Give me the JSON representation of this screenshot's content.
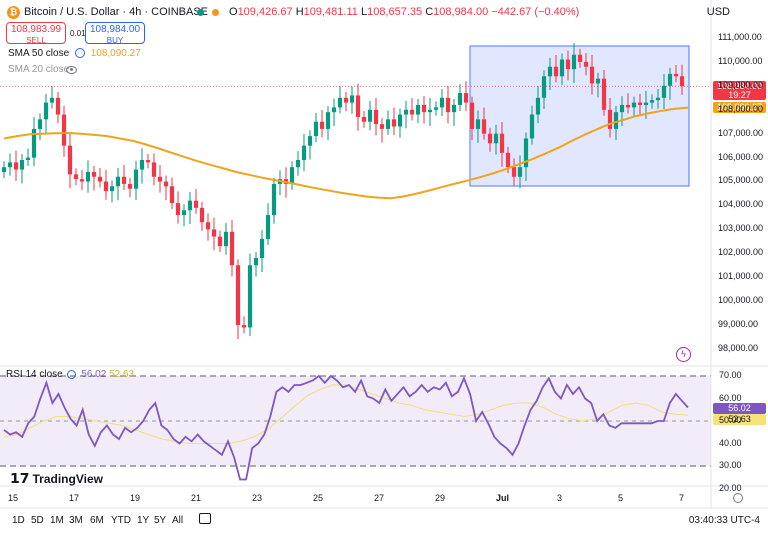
{
  "header": {
    "symbol_title": "Bitcoin / U.S. Dollar · 4h · COINBASE",
    "ohlc": {
      "o_label": "O",
      "o": "109,426.67",
      "h_label": "H",
      "h": "109,481.11",
      "l_label": "L",
      "l": "108,657.35",
      "c_label": "C",
      "c": "108,984.00",
      "change": "−442.67 (−0.40%)"
    },
    "currency": "USD",
    "sell": {
      "price": "108,983.99",
      "label": "SELL"
    },
    "buy": {
      "price": "108,984.00",
      "label": "BUY"
    },
    "spread": "0.01"
  },
  "indicators": {
    "sma50": {
      "label": "SMA 50 close",
      "value": "108,090.27",
      "color": "#f0a31b"
    },
    "sma20": {
      "label": "SMA 20 close"
    },
    "rsi": {
      "label": "RSI 14 close",
      "value": "56.02",
      "ma_value": "52.63",
      "color": "#7e57c2",
      "ma_color": "#f7e27a"
    }
  },
  "price_tags": {
    "last": "108,984.00",
    "countdown": "19:27",
    "sma": "108,090.27"
  },
  "rsi_tags": {
    "rsi": "56.02",
    "ma": "52.63"
  },
  "branding": {
    "name": "TradingView",
    "icon": "tradingview-logo-icon"
  },
  "toolbar": {
    "ranges": [
      "1D",
      "5D",
      "1M",
      "3M",
      "6M",
      "YTD",
      "1Y",
      "5Y",
      "All"
    ],
    "time": "03:40:33 UTC-4",
    "icons": [
      "calendar-icon",
      "gear-icon",
      "lightning-icon"
    ]
  },
  "colors": {
    "up": "#089981",
    "down": "#f23645",
    "sma": "#f0a31b",
    "rsi": "#7e57c2",
    "selection": "#dbe3ff",
    "selection_border": "#2962ff"
  },
  "chart_data": [
    {
      "type": "candlestick",
      "title": "Bitcoin / U.S. Dollar · 4h · COINBASE",
      "ylim": [
        97600,
        111400
      ],
      "y_ticks": [
        "111,000.00",
        "110,000.00",
        "109,000.00",
        "108,000.00",
        "107,000.00",
        "106,000.00",
        "105,000.00",
        "104,000.00",
        "103,000.00",
        "102,000.00",
        "101,000.00",
        "100,000.00",
        "99,000.00",
        "98,000.00"
      ],
      "x_ticks": [
        "15",
        "17",
        "19",
        "21",
        "23",
        "25",
        "27",
        "29",
        "Jul",
        "3",
        "5",
        "7"
      ],
      "close_series": [
        105600,
        105800,
        105500,
        105900,
        106000,
        107200,
        107600,
        108300,
        108500,
        107800,
        106500,
        105300,
        105100,
        105000,
        105400,
        105200,
        105000,
        104600,
        104800,
        105200,
        104900,
        104700,
        105500,
        105900,
        105800,
        105200,
        105000,
        104800,
        104100,
        103600,
        103800,
        104200,
        103900,
        103300,
        103000,
        102700,
        102300,
        102900,
        101500,
        99000,
        98900,
        101500,
        101800,
        102600,
        103600,
        104900,
        105100,
        104900,
        105600,
        105900,
        106500,
        106900,
        107500,
        107200,
        107900,
        108100,
        108500,
        108300,
        108600,
        107700,
        107500,
        108000,
        107400,
        107200,
        107600,
        107300,
        107800,
        108000,
        107800,
        108200,
        107900,
        108000,
        108100,
        108500,
        107900,
        108200,
        108700,
        108300,
        107200,
        107600,
        107000,
        106600,
        107000,
        106200,
        105600,
        105200,
        105600,
        106800,
        107800,
        108500,
        109400,
        109800,
        109400,
        110100,
        109700,
        110300,
        110000,
        109800,
        109100,
        109300,
        108000,
        107200,
        107900,
        108200,
        108100,
        108300,
        108200,
        108300,
        108400,
        108500,
        109000,
        109500,
        109400,
        108984
      ],
      "sma50": [
        106800,
        106900,
        106980,
        107000,
        107020,
        107030,
        107000,
        106950,
        106900,
        106800,
        106700,
        106550,
        106380,
        106200,
        106020,
        105850,
        105700,
        105550,
        105400,
        105280,
        105160,
        105060,
        104960,
        104850,
        104740,
        104640,
        104540,
        104460,
        104380,
        104330,
        104300,
        104380,
        104500,
        104630,
        104780,
        104920,
        105050,
        105200,
        105360,
        105540,
        105740,
        105950,
        106180,
        106420,
        106700,
        106960,
        107200,
        107420,
        107580,
        107740,
        107860,
        107960,
        108040,
        108090
      ],
      "sma20": []
    },
    {
      "type": "line",
      "title": "RSI 14 close",
      "ylim": [
        20,
        70
      ],
      "bands": [
        30,
        70
      ],
      "y_ticks": [
        "70.00",
        "60.00",
        "50.00",
        "40.00",
        "30.00",
        "20.00"
      ],
      "series": [
        {
          "name": "RSI 14 close",
          "values": [
            46,
            44,
            45,
            43,
            49,
            52,
            60,
            67,
            58,
            62,
            56,
            51,
            48,
            55,
            44,
            39,
            45,
            48,
            44,
            42,
            47,
            45,
            47,
            50,
            55,
            58,
            48,
            46,
            42,
            40,
            43,
            41,
            44,
            41,
            39,
            37,
            35,
            41,
            34,
            24,
            24,
            38,
            40,
            44,
            52,
            63,
            65,
            63,
            66,
            66,
            67,
            68,
            70,
            67,
            70,
            68,
            65,
            66,
            63,
            68,
            61,
            60,
            58,
            64,
            59,
            62,
            65,
            61,
            63,
            66,
            63,
            65,
            64,
            67,
            61,
            63,
            69,
            62,
            50,
            54,
            49,
            43,
            40,
            38,
            35,
            40,
            48,
            55,
            59,
            65,
            69,
            63,
            60,
            66,
            62,
            65,
            60,
            58,
            50,
            53,
            48,
            47,
            49,
            49,
            49,
            49,
            49,
            49,
            50,
            50,
            58,
            62,
            59,
            56.02
          ]
        },
        {
          "name": "MA",
          "values": [
            43,
            44,
            47,
            50,
            52,
            52,
            51,
            50,
            49,
            48,
            46,
            44,
            42,
            41,
            40,
            40,
            40,
            40,
            41,
            43,
            46,
            51,
            56,
            61,
            64,
            66,
            66,
            64,
            62,
            60,
            58,
            57,
            55,
            54,
            53,
            52,
            53,
            55,
            57,
            58,
            58,
            56,
            53,
            51,
            50,
            51,
            54,
            57,
            58,
            57,
            54,
            53,
            52.63
          ]
        }
      ]
    }
  ]
}
